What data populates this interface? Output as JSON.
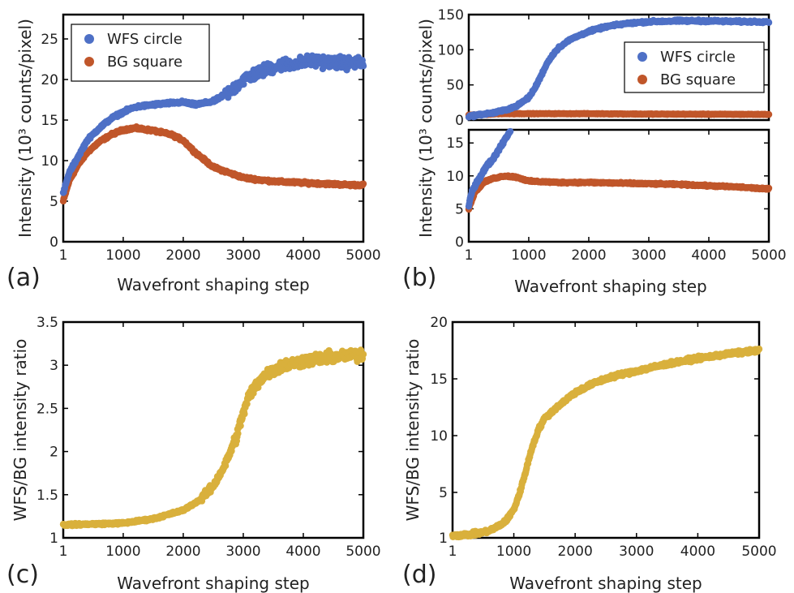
{
  "colors": {
    "wfs": "#4E70C6",
    "bg": "#C0562A",
    "ratio": "#D9B03C",
    "axis": "#000000"
  },
  "chart_data": [
    {
      "id": "a",
      "panel_label": "(a)",
      "type": "scatter",
      "xlabel": "Wavefront shaping step",
      "ylabel": "Intensity (10³ counts/pixel)",
      "xlim": [
        1,
        5000
      ],
      "ylim": [
        0,
        28
      ],
      "xticks": [
        1,
        1000,
        2000,
        3000,
        4000,
        5000
      ],
      "xtick_labels": [
        "1",
        "1000",
        "2000",
        "3000",
        "4000",
        "5000"
      ],
      "yticks": [
        0,
        5,
        10,
        15,
        20,
        25
      ],
      "ytick_labels": [
        "0",
        "5",
        "10",
        "15",
        "20",
        "25"
      ],
      "legend": {
        "placement": "top-left",
        "entries": [
          "WFS circle",
          "BG square"
        ]
      },
      "series": [
        {
          "name": "WFS circle",
          "color_key": "wfs",
          "x": [
            1,
            100,
            250,
            400,
            600,
            800,
            1000,
            1200,
            1500,
            1800,
            2000,
            2200,
            2500,
            2800,
            3000,
            3300,
            3600,
            3900,
            4200,
            4500,
            4800,
            5000
          ],
          "y": [
            6,
            8.5,
            10.5,
            12.5,
            14,
            15.2,
            16,
            16.6,
            16.9,
            17.1,
            17.2,
            16.9,
            17.3,
            18.6,
            20,
            21,
            21.8,
            22,
            22.3,
            22.1,
            22,
            22
          ]
        },
        {
          "name": "BG square",
          "color_key": "bg",
          "x": [
            1,
            100,
            250,
            400,
            600,
            800,
            1000,
            1200,
            1500,
            1800,
            2000,
            2200,
            2500,
            2800,
            3000,
            3300,
            3600,
            3900,
            4200,
            4500,
            4800,
            5000
          ],
          "y": [
            5,
            7.5,
            9.5,
            11,
            12.3,
            13.2,
            13.8,
            14,
            13.7,
            13.2,
            12.5,
            11,
            9.2,
            8.4,
            7.9,
            7.6,
            7.4,
            7.3,
            7.2,
            7.1,
            7.0,
            7.0
          ]
        }
      ]
    },
    {
      "id": "b",
      "panel_label": "(b)",
      "type": "scatter",
      "xlabel": "Wavefront shaping step",
      "ylabel": "Intensity (10³ counts/pixel)",
      "xlim": [
        1,
        5000
      ],
      "xticks": [
        1,
        1000,
        2000,
        3000,
        4000,
        5000
      ],
      "xtick_labels": [
        "1",
        "1000",
        "2000",
        "3000",
        "4000",
        "5000"
      ],
      "upper": {
        "ylim": [
          0,
          150
        ],
        "yticks": [
          0,
          50,
          100,
          150
        ],
        "ytick_labels": [
          "0",
          "50",
          "100",
          "150"
        ],
        "legend": {
          "placement": "middle-right",
          "entries": [
            "WFS circle",
            "BG square"
          ]
        },
        "series": [
          {
            "name": "WFS circle",
            "color_key": "wfs",
            "x": [
              1,
              200,
              400,
              600,
              800,
              1000,
              1100,
              1200,
              1300,
              1400,
              1500,
              1700,
              2000,
              2300,
              2600,
              3000,
              3500,
              4000,
              4500,
              5000
            ],
            "y": [
              5,
              8,
              10,
              14,
              20,
              32,
              45,
              62,
              80,
              93,
              103,
              115,
              126,
              133,
              137,
              140,
              141,
              141,
              140,
              140
            ]
          },
          {
            "name": "BG square",
            "color_key": "bg",
            "x": [
              1,
              500,
              1000,
              2000,
              3000,
              4000,
              5000
            ],
            "y": [
              7,
              9,
              9,
              9,
              8.5,
              8.3,
              8
            ]
          }
        ]
      },
      "lower": {
        "ylim": [
          0,
          17
        ],
        "yticks": [
          0,
          5,
          10,
          15
        ],
        "ytick_labels": [
          "0",
          "5",
          "10",
          "15"
        ],
        "series": [
          {
            "name": "WFS circle",
            "color_key": "wfs",
            "x": [
              1,
              50,
              100,
              200,
              300,
              400,
              500,
              600,
              700
            ],
            "y": [
              5.5,
              7.5,
              8.5,
              10,
              11.5,
              12.5,
              14,
              15.5,
              17
            ]
          },
          {
            "name": "BG square",
            "color_key": "bg",
            "x": [
              1,
              100,
              250,
              400,
              600,
              800,
              1000,
              1500,
              2000,
              2500,
              3000,
              3500,
              4000,
              4500,
              5000
            ],
            "y": [
              5,
              7.5,
              9,
              9.6,
              10,
              9.8,
              9.2,
              9.0,
              9.0,
              8.9,
              8.8,
              8.7,
              8.5,
              8.3,
              8.0
            ]
          }
        ]
      }
    },
    {
      "id": "c",
      "panel_label": "(c)",
      "type": "scatter",
      "xlabel": "Wavefront shaping step",
      "ylabel": "WFS/BG intensity ratio",
      "xlim": [
        1,
        5000
      ],
      "ylim": [
        1,
        3.5
      ],
      "xticks": [
        1,
        1000,
        2000,
        3000,
        4000,
        5000
      ],
      "xtick_labels": [
        "1",
        "1000",
        "2000",
        "3000",
        "4000",
        "5000"
      ],
      "yticks": [
        1,
        1.5,
        2,
        2.5,
        3,
        3.5
      ],
      "ytick_labels": [
        "1",
        "1.5",
        "2",
        "2.5",
        "3",
        "3.5"
      ],
      "series": [
        {
          "name": "",
          "color_key": "ratio",
          "x": [
            1,
            500,
            1000,
            1500,
            2000,
            2300,
            2500,
            2700,
            2900,
            3000,
            3100,
            3300,
            3500,
            3700,
            4000,
            4300,
            4600,
            5000
          ],
          "y": [
            1.15,
            1.16,
            1.17,
            1.22,
            1.32,
            1.45,
            1.6,
            1.85,
            2.2,
            2.45,
            2.65,
            2.85,
            2.95,
            3.0,
            3.05,
            3.08,
            3.1,
            3.12
          ]
        }
      ]
    },
    {
      "id": "d",
      "panel_label": "(d)",
      "type": "scatter",
      "xlabel": "Wavefront shaping step",
      "ylabel": "WFS/BG intensity ratio",
      "xlim": [
        1,
        5000
      ],
      "ylim": [
        1,
        20
      ],
      "xticks": [
        1,
        1000,
        2000,
        3000,
        4000,
        5000
      ],
      "xtick_labels": [
        "1",
        "1000",
        "2000",
        "3000",
        "4000",
        "5000"
      ],
      "yticks": [
        1,
        5,
        10,
        15,
        20
      ],
      "ytick_labels": [
        "1",
        "5",
        "10",
        "15",
        "20"
      ],
      "series": [
        {
          "name": "",
          "color_key": "ratio",
          "x": [
            1,
            300,
            600,
            800,
            900,
            1000,
            1100,
            1200,
            1300,
            1400,
            1500,
            1700,
            2000,
            2300,
            2600,
            3000,
            3500,
            4000,
            4500,
            5000
          ],
          "y": [
            1.2,
            1.3,
            1.6,
            2.2,
            2.7,
            3.5,
            5,
            7,
            9,
            10.5,
            11.5,
            12.5,
            13.8,
            14.6,
            15.2,
            15.7,
            16.3,
            16.8,
            17.2,
            17.5
          ]
        }
      ]
    }
  ]
}
